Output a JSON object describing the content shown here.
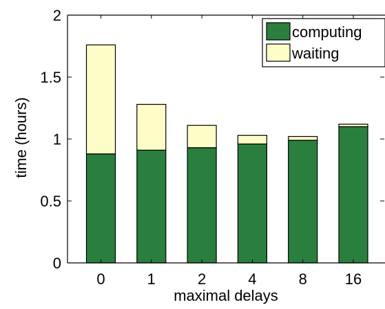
{
  "chart_data": {
    "type": "bar",
    "stacked": true,
    "categories": [
      "0",
      "1",
      "2",
      "4",
      "8",
      "16"
    ],
    "series": [
      {
        "name": "computing",
        "color": "#2a7f3e",
        "values": [
          0.88,
          0.91,
          0.93,
          0.96,
          0.99,
          1.1
        ]
      },
      {
        "name": "waiting",
        "color": "#fefdc8",
        "values": [
          0.88,
          0.37,
          0.18,
          0.07,
          0.03,
          0.02
        ]
      }
    ],
    "xlabel": "maximal delays",
    "ylabel": "time (hours)",
    "ylim": [
      0,
      2
    ],
    "yticks": [
      {
        "value": 0,
        "label": "0"
      },
      {
        "value": 0.5,
        "label": "0.5"
      },
      {
        "value": 1,
        "label": "1"
      },
      {
        "value": 1.5,
        "label": "1.5"
      },
      {
        "value": 2,
        "label": "2"
      }
    ],
    "grid": false,
    "legend_position": "top-right"
  }
}
